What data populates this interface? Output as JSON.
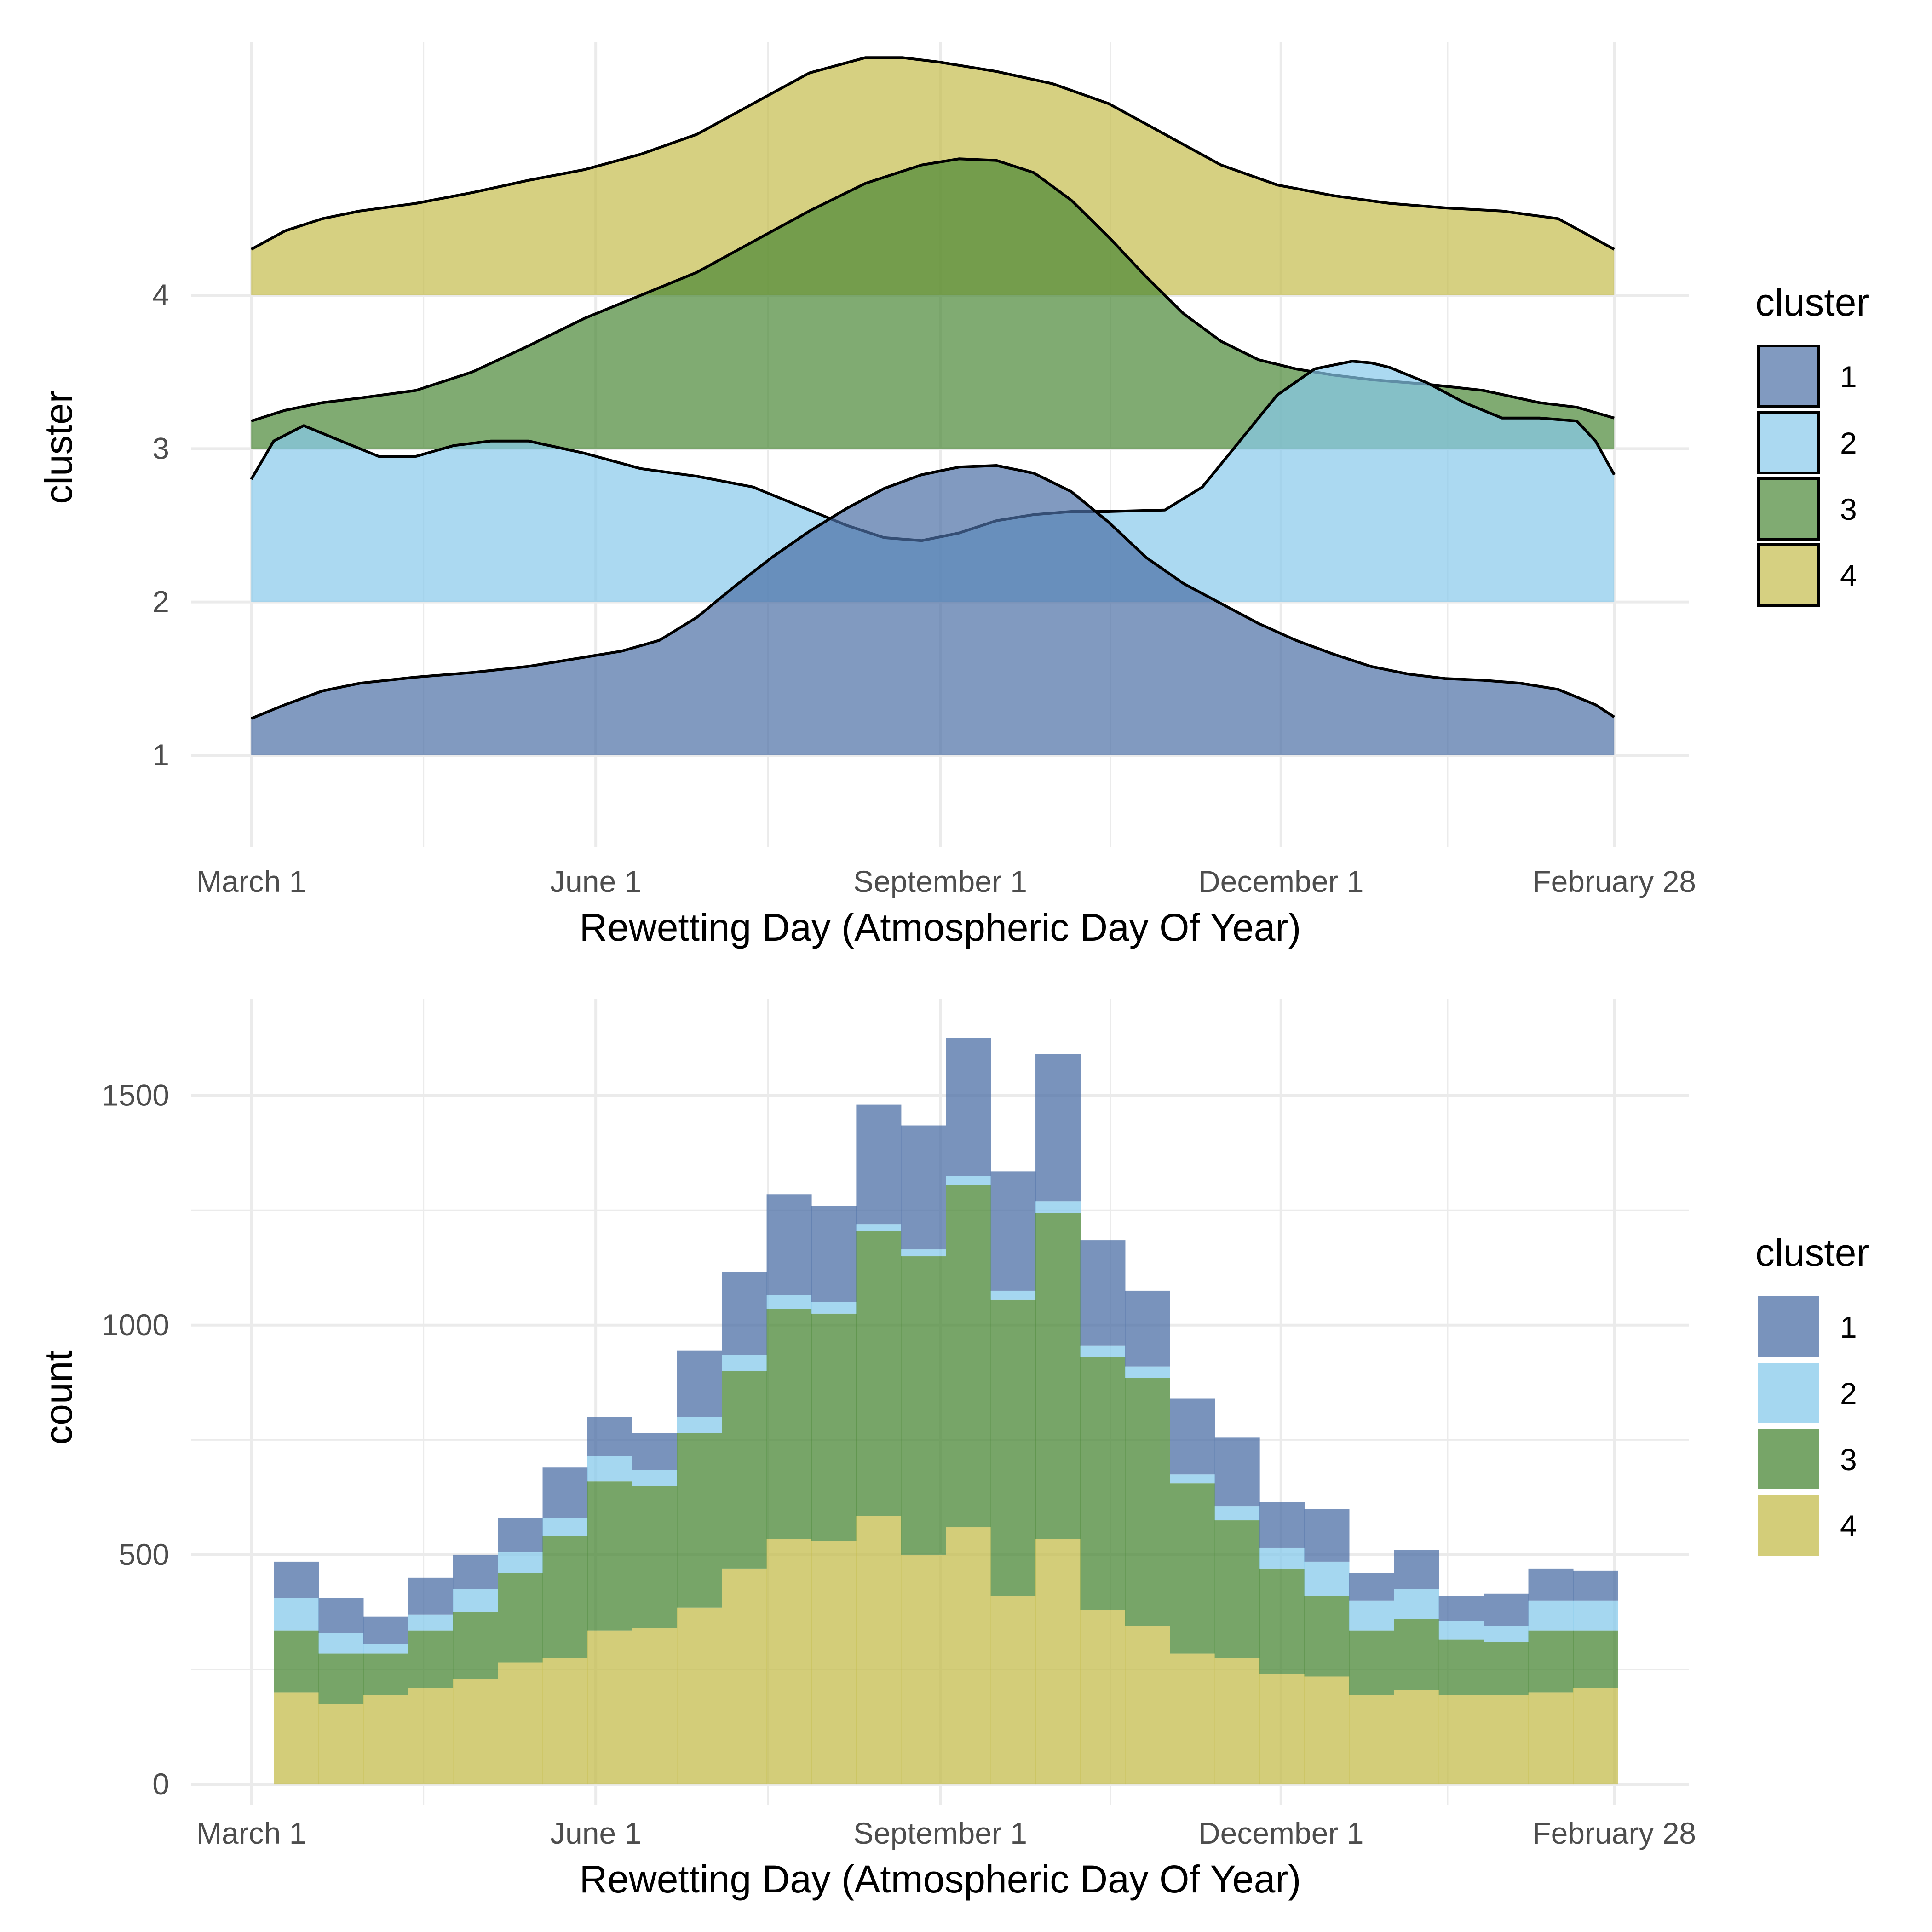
{
  "chart_data": [
    {
      "type": "ridgeline_density",
      "title": "",
      "xlabel": "Rewetting Day (Atmospheric Day Of Year)",
      "ylabel": "cluster",
      "x_ticks": [
        {
          "day": 1,
          "label": "March 1"
        },
        {
          "day": 93,
          "label": "June 1"
        },
        {
          "day": 185,
          "label": "September 1"
        },
        {
          "day": 276,
          "label": "December 1"
        },
        {
          "day": 365,
          "label": "February 28"
        }
      ],
      "xlim": [
        -15,
        385
      ],
      "y_ticks": [
        "1",
        "2",
        "3",
        "4"
      ],
      "ylim": [
        0.4,
        5.65
      ],
      "legend": {
        "title": "cluster",
        "entries": [
          "1",
          "2",
          "3",
          "4"
        ]
      },
      "colors": {
        "1": "#4C6FA5",
        "2": "#87C9EB",
        "3": "#4A8736",
        "4": "#C4BC4C"
      },
      "series": [
        {
          "name": "1",
          "baseline": 1,
          "x": [
            1,
            10,
            20,
            30,
            45,
            60,
            75,
            90,
            100,
            110,
            120,
            130,
            140,
            150,
            160,
            170,
            180,
            190,
            200,
            210,
            220,
            230,
            240,
            250,
            260,
            270,
            280,
            290,
            300,
            310,
            320,
            330,
            340,
            350,
            360,
            365
          ],
          "y": [
            1.24,
            1.33,
            1.42,
            1.47,
            1.51,
            1.54,
            1.58,
            1.64,
            1.68,
            1.75,
            1.9,
            2.1,
            2.29,
            2.46,
            2.61,
            2.74,
            2.83,
            2.88,
            2.89,
            2.84,
            2.72,
            2.52,
            2.29,
            2.12,
            1.99,
            1.86,
            1.75,
            1.66,
            1.58,
            1.53,
            1.5,
            1.49,
            1.47,
            1.43,
            1.33,
            1.25
          ]
        },
        {
          "name": "2",
          "baseline": 2,
          "x": [
            1,
            7,
            15,
            25,
            35,
            45,
            55,
            65,
            75,
            90,
            105,
            120,
            135,
            150,
            160,
            170,
            180,
            190,
            200,
            210,
            220,
            230,
            245,
            255,
            265,
            275,
            285,
            295,
            300,
            305,
            315,
            325,
            335,
            345,
            355,
            360,
            365
          ],
          "y": [
            2.8,
            3.05,
            3.15,
            3.05,
            2.95,
            2.95,
            3.02,
            3.05,
            3.05,
            2.97,
            2.87,
            2.82,
            2.75,
            2.6,
            2.5,
            2.42,
            2.4,
            2.45,
            2.53,
            2.57,
            2.59,
            2.59,
            2.6,
            2.75,
            3.05,
            3.35,
            3.52,
            3.57,
            3.56,
            3.53,
            3.43,
            3.3,
            3.2,
            3.2,
            3.18,
            3.05,
            2.83
          ]
        },
        {
          "name": "3",
          "baseline": 3,
          "x": [
            1,
            10,
            20,
            30,
            45,
            60,
            75,
            90,
            105,
            120,
            135,
            150,
            165,
            180,
            190,
            200,
            210,
            220,
            230,
            240,
            250,
            260,
            270,
            280,
            290,
            300,
            315,
            330,
            345,
            355,
            365
          ],
          "y": [
            3.18,
            3.25,
            3.3,
            3.33,
            3.38,
            3.5,
            3.67,
            3.85,
            4.0,
            4.15,
            4.35,
            4.55,
            4.73,
            4.85,
            4.89,
            4.88,
            4.8,
            4.62,
            4.38,
            4.12,
            3.88,
            3.7,
            3.58,
            3.52,
            3.48,
            3.45,
            3.42,
            3.38,
            3.3,
            3.27,
            3.2
          ]
        },
        {
          "name": "4",
          "baseline": 4,
          "x": [
            1,
            10,
            20,
            30,
            45,
            60,
            75,
            90,
            105,
            120,
            135,
            150,
            165,
            175,
            185,
            200,
            215,
            230,
            245,
            260,
            275,
            290,
            305,
            320,
            335,
            350,
            365
          ],
          "y": [
            4.3,
            4.42,
            4.5,
            4.55,
            4.6,
            4.67,
            4.75,
            4.82,
            4.92,
            5.05,
            5.25,
            5.45,
            5.55,
            5.55,
            5.52,
            5.46,
            5.38,
            5.25,
            5.05,
            4.85,
            4.72,
            4.65,
            4.6,
            4.57,
            4.55,
            4.5,
            4.3
          ]
        }
      ]
    },
    {
      "type": "stacked_histogram",
      "title": "",
      "xlabel": "Rewetting Day (Atmospheric Day Of Year)",
      "ylabel": "count",
      "x_ticks": [
        {
          "day": 1,
          "label": "March 1"
        },
        {
          "day": 93,
          "label": "June 1"
        },
        {
          "day": 185,
          "label": "September 1"
        },
        {
          "day": 276,
          "label": "December 1"
        },
        {
          "day": 365,
          "label": "February 28"
        }
      ],
      "xlim": [
        -15,
        385
      ],
      "y_ticks": [
        0,
        500,
        1000,
        1500
      ],
      "ylim": [
        -45,
        1710
      ],
      "bin_range": [
        7,
        366
      ],
      "legend": {
        "title": "cluster",
        "entries": [
          "1",
          "2",
          "3",
          "4"
        ]
      },
      "colors": {
        "1": "#4C6FA5",
        "2": "#87C9EB",
        "3": "#4A8736",
        "4": "#C4BC4C"
      },
      "totals": [
        485,
        405,
        365,
        450,
        500,
        580,
        690,
        800,
        765,
        945,
        1115,
        1285,
        1260,
        1480,
        1435,
        1625,
        1335,
        1590,
        1185,
        1075,
        840,
        755,
        615,
        600,
        460,
        510,
        410,
        415,
        470,
        465
      ],
      "series": [
        {
          "name": "4",
          "values": [
            200,
            175,
            195,
            210,
            230,
            265,
            275,
            335,
            340,
            385,
            470,
            535,
            530,
            585,
            500,
            560,
            410,
            535,
            380,
            345,
            285,
            275,
            240,
            235,
            195,
            205,
            195,
            195,
            200,
            210
          ]
        },
        {
          "name": "3",
          "values": [
            135,
            110,
            90,
            125,
            145,
            195,
            265,
            325,
            310,
            380,
            430,
            500,
            495,
            620,
            650,
            745,
            645,
            710,
            550,
            540,
            370,
            300,
            230,
            175,
            140,
            155,
            120,
            115,
            135,
            125
          ]
        },
        {
          "name": "2",
          "values": [
            70,
            45,
            20,
            35,
            50,
            45,
            40,
            55,
            35,
            35,
            35,
            30,
            25,
            15,
            15,
            20,
            20,
            25,
            25,
            25,
            20,
            30,
            45,
            75,
            65,
            65,
            40,
            35,
            65,
            65
          ]
        },
        {
          "name": "1",
          "values": [
            80,
            75,
            60,
            80,
            75,
            75,
            110,
            85,
            80,
            145,
            180,
            220,
            210,
            260,
            270,
            300,
            260,
            320,
            230,
            165,
            165,
            150,
            100,
            115,
            60,
            85,
            55,
            70,
            70,
            65
          ]
        }
      ]
    }
  ]
}
